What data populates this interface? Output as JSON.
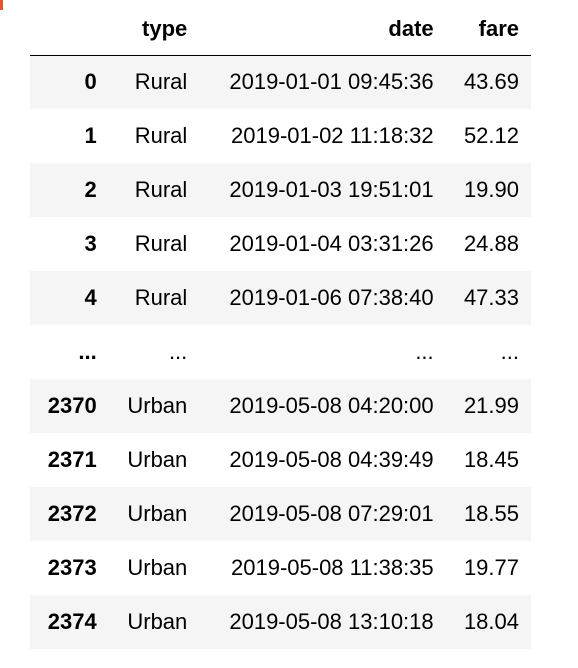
{
  "table": {
    "columns": [
      "",
      "type",
      "date",
      "fare"
    ],
    "rows": [
      {
        "index": "0",
        "type": "Rural",
        "date": "2019-01-01 09:45:36",
        "fare": "43.69"
      },
      {
        "index": "1",
        "type": "Rural",
        "date": "2019-01-02 11:18:32",
        "fare": "52.12"
      },
      {
        "index": "2",
        "type": "Rural",
        "date": "2019-01-03 19:51:01",
        "fare": "19.90"
      },
      {
        "index": "3",
        "type": "Rural",
        "date": "2019-01-04 03:31:26",
        "fare": "24.88"
      },
      {
        "index": "4",
        "type": "Rural",
        "date": "2019-01-06 07:38:40",
        "fare": "47.33"
      },
      {
        "index": "...",
        "type": "...",
        "date": "...",
        "fare": "..."
      },
      {
        "index": "2370",
        "type": "Urban",
        "date": "2019-05-08 04:20:00",
        "fare": "21.99"
      },
      {
        "index": "2371",
        "type": "Urban",
        "date": "2019-05-08 04:39:49",
        "fare": "18.45"
      },
      {
        "index": "2372",
        "type": "Urban",
        "date": "2019-05-08 07:29:01",
        "fare": "18.55"
      },
      {
        "index": "2373",
        "type": "Urban",
        "date": "2019-05-08 11:38:35",
        "fare": "19.77"
      },
      {
        "index": "2374",
        "type": "Urban",
        "date": "2019-05-08 13:10:18",
        "fare": "18.04"
      }
    ]
  },
  "colors": {
    "stripe": "#f5f5f5",
    "header_rule": "#000000",
    "corner_mark": "#e8542a"
  }
}
